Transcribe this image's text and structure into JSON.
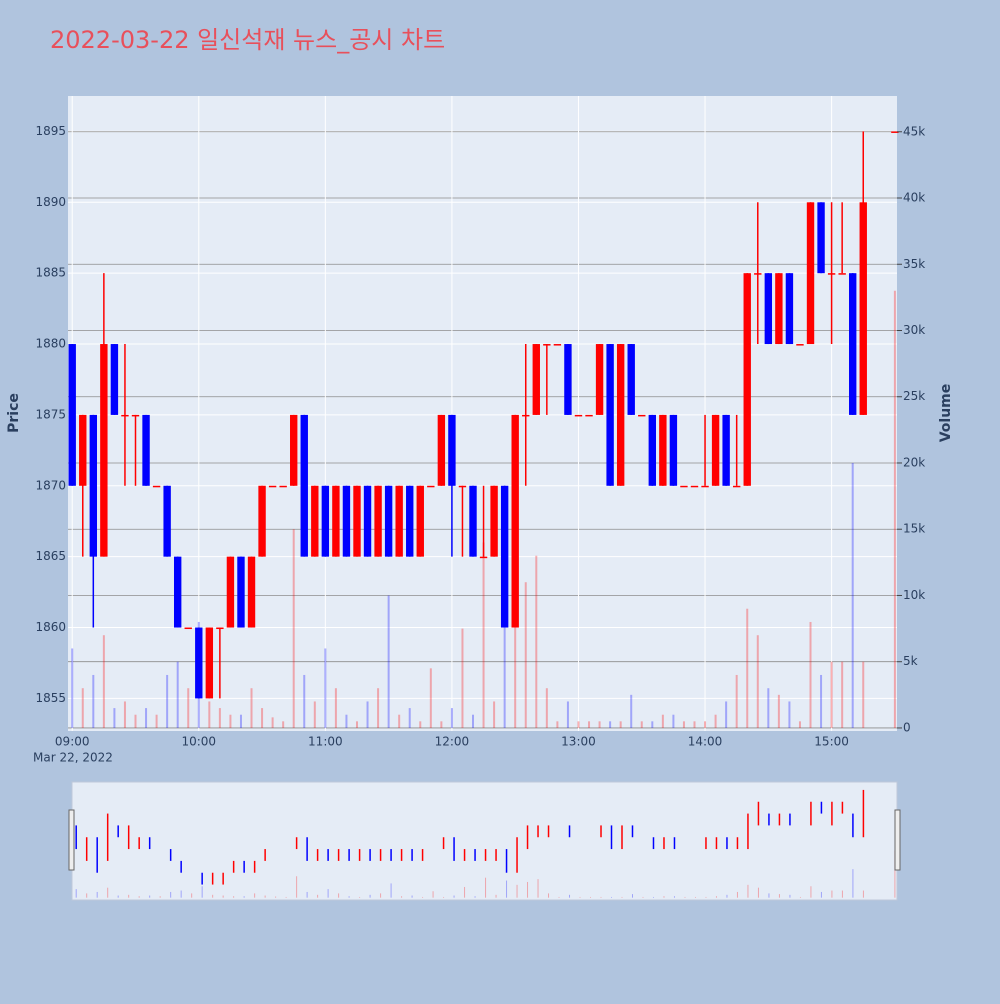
{
  "chart_data": {
    "type": "candlestick",
    "title": "2022-03-22 일신석재 뉴스_공시 차트",
    "x": [
      "09:00",
      "09:05",
      "09:10",
      "09:15",
      "09:20",
      "09:25",
      "09:30",
      "09:35",
      "09:40",
      "09:45",
      "09:50",
      "09:55",
      "10:00",
      "10:05",
      "10:10",
      "10:15",
      "10:20",
      "10:25",
      "10:30",
      "10:35",
      "10:40",
      "10:45",
      "10:50",
      "10:55",
      "11:00",
      "11:05",
      "11:10",
      "11:15",
      "11:20",
      "11:25",
      "11:30",
      "11:35",
      "11:40",
      "11:45",
      "11:50",
      "11:55",
      "12:00",
      "12:05",
      "12:10",
      "12:15",
      "12:20",
      "12:25",
      "12:30",
      "12:35",
      "12:40",
      "12:45",
      "12:50",
      "12:55",
      "13:00",
      "13:05",
      "13:10",
      "13:15",
      "13:20",
      "13:25",
      "13:30",
      "13:35",
      "13:40",
      "13:45",
      "13:50",
      "13:55",
      "14:00",
      "14:05",
      "14:10",
      "14:15",
      "14:20",
      "14:25",
      "14:30",
      "14:35",
      "14:40",
      "14:45",
      "14:50",
      "14:55",
      "15:00",
      "15:05",
      "15:10",
      "15:15",
      "15:30"
    ],
    "open": [
      1880,
      1870,
      1875,
      1865,
      1880,
      1875,
      1875,
      1875,
      1870,
      1870,
      1865,
      1860,
      1860,
      1855,
      1860,
      1860,
      1865,
      1860,
      1865,
      1870,
      1870,
      1870,
      1875,
      1865,
      1870,
      1865,
      1870,
      1865,
      1870,
      1865,
      1870,
      1865,
      1870,
      1865,
      1870,
      1870,
      1875,
      1870,
      1870,
      1865,
      1865,
      1870,
      1860,
      1875,
      1875,
      1880,
      1880,
      1880,
      1875,
      1875,
      1875,
      1880,
      1870,
      1880,
      1875,
      1875,
      1870,
      1875,
      1870,
      1870,
      1870,
      1870,
      1875,
      1870,
      1870,
      1885,
      1885,
      1880,
      1885,
      1880,
      1880,
      1890,
      1885,
      1885,
      1885,
      1875,
      1895
    ],
    "high": [
      1880,
      1875,
      1875,
      1885,
      1880,
      1880,
      1875,
      1875,
      1870,
      1870,
      1865,
      1860,
      1860,
      1860,
      1860,
      1865,
      1865,
      1865,
      1870,
      1870,
      1870,
      1875,
      1875,
      1870,
      1870,
      1870,
      1870,
      1870,
      1870,
      1870,
      1870,
      1870,
      1870,
      1870,
      1870,
      1875,
      1875,
      1870,
      1870,
      1870,
      1870,
      1870,
      1875,
      1880,
      1880,
      1880,
      1880,
      1880,
      1875,
      1875,
      1880,
      1880,
      1880,
      1880,
      1875,
      1875,
      1875,
      1875,
      1870,
      1870,
      1875,
      1875,
      1875,
      1875,
      1885,
      1890,
      1885,
      1885,
      1885,
      1880,
      1890,
      1890,
      1890,
      1890,
      1885,
      1895,
      1895
    ],
    "low": [
      1870,
      1865,
      1860,
      1865,
      1875,
      1870,
      1870,
      1870,
      1870,
      1865,
      1860,
      1860,
      1855,
      1855,
      1855,
      1860,
      1860,
      1860,
      1865,
      1870,
      1870,
      1870,
      1865,
      1865,
      1865,
      1865,
      1865,
      1865,
      1865,
      1865,
      1865,
      1865,
      1865,
      1865,
      1870,
      1870,
      1865,
      1865,
      1865,
      1865,
      1865,
      1860,
      1860,
      1870,
      1875,
      1875,
      1880,
      1875,
      1875,
      1875,
      1875,
      1870,
      1870,
      1875,
      1875,
      1870,
      1870,
      1870,
      1870,
      1870,
      1870,
      1870,
      1870,
      1870,
      1870,
      1880,
      1880,
      1880,
      1880,
      1880,
      1880,
      1885,
      1880,
      1885,
      1875,
      1875,
      1895
    ],
    "close": [
      1870,
      1875,
      1865,
      1880,
      1875,
      1875,
      1875,
      1870,
      1870,
      1865,
      1860,
      1860,
      1855,
      1860,
      1860,
      1865,
      1860,
      1865,
      1870,
      1870,
      1870,
      1875,
      1865,
      1870,
      1865,
      1870,
      1865,
      1870,
      1865,
      1870,
      1865,
      1870,
      1865,
      1870,
      1870,
      1875,
      1870,
      1870,
      1865,
      1865,
      1870,
      1860,
      1875,
      1875,
      1880,
      1880,
      1880,
      1875,
      1875,
      1875,
      1880,
      1870,
      1880,
      1875,
      1875,
      1870,
      1875,
      1870,
      1870,
      1870,
      1870,
      1875,
      1870,
      1870,
      1885,
      1885,
      1880,
      1885,
      1880,
      1880,
      1890,
      1885,
      1885,
      1885,
      1875,
      1890,
      1895
    ],
    "volume": [
      6000,
      3000,
      4000,
      7000,
      1500,
      2000,
      1000,
      1500,
      1000,
      4000,
      5000,
      3000,
      8000,
      2000,
      1500,
      1000,
      1000,
      3000,
      1500,
      800,
      500,
      15000,
      4000,
      2000,
      6000,
      3000,
      1000,
      500,
      2000,
      3000,
      10000,
      1000,
      1500,
      500,
      4500,
      500,
      1500,
      7500,
      1000,
      14000,
      2000,
      12000,
      9000,
      11000,
      13000,
      3000,
      500,
      2000,
      500,
      500,
      500,
      500,
      500,
      2500,
      500,
      500,
      1000,
      1000,
      500,
      500,
      500,
      1000,
      2000,
      4000,
      9000,
      7000,
      3000,
      2500,
      2000,
      500,
      8000,
      4000,
      5000,
      5000,
      20000,
      5000,
      33000
    ],
    "increasing_color": "#ff0000",
    "decreasing_color": "#0000ff",
    "xlim": [
      "08:58",
      "15:31"
    ],
    "xticks": [
      "09:00",
      "10:00",
      "11:00",
      "12:00",
      "13:00",
      "14:00",
      "15:00"
    ],
    "x_date_label": "Mar 22, 2022",
    "ylim": [
      1852.7,
      1897.5
    ],
    "yticks": [
      1855,
      1860,
      1865,
      1870,
      1875,
      1880,
      1885,
      1890,
      1895
    ],
    "y2lim": [
      -230,
      47700
    ],
    "y2ticks": [
      {
        "value": 0,
        "label": "0"
      },
      {
        "value": 5000,
        "label": "5k"
      },
      {
        "value": 10000,
        "label": "10k"
      },
      {
        "value": 15000,
        "label": "15k"
      },
      {
        "value": 20000,
        "label": "20k"
      },
      {
        "value": 25000,
        "label": "25k"
      },
      {
        "value": 30000,
        "label": "30k"
      },
      {
        "value": 35000,
        "label": "35k"
      },
      {
        "value": 40000,
        "label": "40k"
      },
      {
        "value": 45000,
        "label": "45k"
      }
    ],
    "ylabel": "Price",
    "y2label": "Volume",
    "grid": true,
    "rangeslider": true
  }
}
